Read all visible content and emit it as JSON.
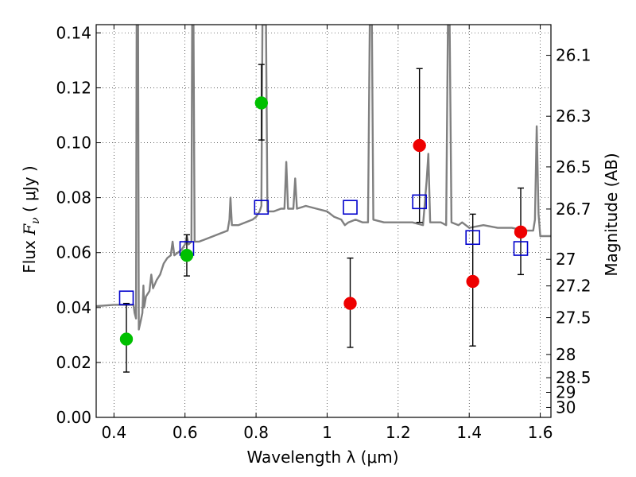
{
  "chart_data": {
    "type": "scatter",
    "xlabel": "Wavelength  λ (μm)",
    "ylabel": "Flux  F_ν  ( μJy )",
    "ylabel_parts": {
      "prefix": "Flux ",
      "symbol": "F",
      "subscript": "ν",
      "suffix": " ( μJy )"
    },
    "y2label": "Magnitude (AB)",
    "xlim": [
      0.35,
      1.63
    ],
    "ylim": [
      0.0,
      0.143
    ],
    "grid": true,
    "x_ticks": [
      {
        "value": 0.4,
        "label": "0.4"
      },
      {
        "value": 0.6,
        "label": "0.6"
      },
      {
        "value": 0.8,
        "label": "0.8"
      },
      {
        "value": 1.0,
        "label": "1"
      },
      {
        "value": 1.2,
        "label": "1.2"
      },
      {
        "value": 1.4,
        "label": "1.4"
      },
      {
        "value": 1.6,
        "label": "1.6"
      }
    ],
    "y_ticks": [
      {
        "value": 0.0,
        "label": "0.00"
      },
      {
        "value": 0.02,
        "label": "0.02"
      },
      {
        "value": 0.04,
        "label": "0.04"
      },
      {
        "value": 0.06,
        "label": "0.06"
      },
      {
        "value": 0.08,
        "label": "0.08"
      },
      {
        "value": 0.1,
        "label": "0.10"
      },
      {
        "value": 0.12,
        "label": "0.12"
      },
      {
        "value": 0.14,
        "label": "0.14"
      }
    ],
    "y2_ticks": [
      {
        "value": 26.1,
        "label": "26.1"
      },
      {
        "value": 26.3,
        "label": "26.3"
      },
      {
        "value": 26.5,
        "label": "26.5"
      },
      {
        "value": 26.7,
        "label": "26.7"
      },
      {
        "value": 27.0,
        "label": "27"
      },
      {
        "value": 27.2,
        "label": "27.2"
      },
      {
        "value": 27.5,
        "label": "27.5"
      },
      {
        "value": 28.0,
        "label": "28"
      },
      {
        "value": 28.5,
        "label": "28.5"
      },
      {
        "value": 29.0,
        "label": "29"
      },
      {
        "value": 30.0,
        "label": "30"
      }
    ],
    "series": [
      {
        "kind": "spectrum",
        "color": "#808080",
        "points": [
          [
            0.35,
            0.0405
          ],
          [
            0.4,
            0.041
          ],
          [
            0.44,
            0.041
          ],
          [
            0.455,
            0.041
          ],
          [
            0.458,
            0.038
          ],
          [
            0.462,
            0.036
          ],
          [
            0.464,
            0.143
          ],
          [
            0.468,
            0.143
          ],
          [
            0.47,
            0.032
          ],
          [
            0.475,
            0.035
          ],
          [
            0.48,
            0.038
          ],
          [
            0.483,
            0.048
          ],
          [
            0.485,
            0.04
          ],
          [
            0.49,
            0.044
          ],
          [
            0.5,
            0.046
          ],
          [
            0.505,
            0.052
          ],
          [
            0.51,
            0.047
          ],
          [
            0.52,
            0.05
          ],
          [
            0.53,
            0.052
          ],
          [
            0.54,
            0.056
          ],
          [
            0.55,
            0.058
          ],
          [
            0.56,
            0.059
          ],
          [
            0.565,
            0.064
          ],
          [
            0.57,
            0.059
          ],
          [
            0.58,
            0.06
          ],
          [
            0.59,
            0.061
          ],
          [
            0.6,
            0.063
          ],
          [
            0.605,
            0.066
          ],
          [
            0.61,
            0.063
          ],
          [
            0.618,
            0.064
          ],
          [
            0.62,
            0.143
          ],
          [
            0.624,
            0.143
          ],
          [
            0.627,
            0.064
          ],
          [
            0.64,
            0.064
          ],
          [
            0.66,
            0.065
          ],
          [
            0.68,
            0.066
          ],
          [
            0.7,
            0.067
          ],
          [
            0.72,
            0.068
          ],
          [
            0.725,
            0.072
          ],
          [
            0.728,
            0.08
          ],
          [
            0.732,
            0.07
          ],
          [
            0.75,
            0.07
          ],
          [
            0.77,
            0.071
          ],
          [
            0.79,
            0.072
          ],
          [
            0.8,
            0.073
          ],
          [
            0.81,
            0.075
          ],
          [
            0.815,
            0.077
          ],
          [
            0.818,
            0.143
          ],
          [
            0.822,
            0.143
          ],
          [
            0.825,
            0.143
          ],
          [
            0.828,
            0.143
          ],
          [
            0.832,
            0.075
          ],
          [
            0.85,
            0.075
          ],
          [
            0.87,
            0.076
          ],
          [
            0.88,
            0.076
          ],
          [
            0.885,
            0.093
          ],
          [
            0.89,
            0.076
          ],
          [
            0.905,
            0.076
          ],
          [
            0.91,
            0.087
          ],
          [
            0.915,
            0.076
          ],
          [
            0.94,
            0.077
          ],
          [
            0.97,
            0.076
          ],
          [
            1.0,
            0.075
          ],
          [
            1.02,
            0.073
          ],
          [
            1.04,
            0.072
          ],
          [
            1.05,
            0.07
          ],
          [
            1.06,
            0.071
          ],
          [
            1.08,
            0.072
          ],
          [
            1.1,
            0.071
          ],
          [
            1.115,
            0.071
          ],
          [
            1.12,
            0.143
          ],
          [
            1.126,
            0.143
          ],
          [
            1.13,
            0.072
          ],
          [
            1.16,
            0.071
          ],
          [
            1.2,
            0.071
          ],
          [
            1.24,
            0.071
          ],
          [
            1.27,
            0.07
          ],
          [
            1.28,
            0.086
          ],
          [
            1.285,
            0.096
          ],
          [
            1.29,
            0.071
          ],
          [
            1.32,
            0.071
          ],
          [
            1.335,
            0.07
          ],
          [
            1.34,
            0.143
          ],
          [
            1.345,
            0.143
          ],
          [
            1.35,
            0.071
          ],
          [
            1.37,
            0.07
          ],
          [
            1.38,
            0.071
          ],
          [
            1.4,
            0.069
          ],
          [
            1.44,
            0.07
          ],
          [
            1.48,
            0.069
          ],
          [
            1.52,
            0.069
          ],
          [
            1.56,
            0.068
          ],
          [
            1.58,
            0.068
          ],
          [
            1.585,
            0.072
          ],
          [
            1.59,
            0.106
          ],
          [
            1.595,
            0.074
          ],
          [
            1.6,
            0.066
          ],
          [
            1.63,
            0.066
          ]
        ]
      },
      {
        "kind": "model-square",
        "color": "#0000cc",
        "points": [
          [
            0.435,
            0.0435
          ],
          [
            0.605,
            0.0615
          ],
          [
            0.815,
            0.0765
          ],
          [
            1.065,
            0.0765
          ],
          [
            1.26,
            0.0785
          ],
          [
            1.41,
            0.0655
          ],
          [
            1.545,
            0.0615
          ]
        ]
      },
      {
        "kind": "detection",
        "color": "#00c000",
        "points": [
          {
            "x": 0.435,
            "y": 0.0285,
            "err": [
              0.0165,
              0.0415
            ]
          },
          {
            "x": 0.605,
            "y": 0.059,
            "err": [
              0.0515,
              0.0665
            ]
          },
          {
            "x": 0.815,
            "y": 0.1145,
            "err": [
              0.101,
              0.1285
            ]
          }
        ]
      },
      {
        "kind": "detection",
        "color": "#ee0000",
        "points": [
          {
            "x": 1.065,
            "y": 0.0415,
            "err": [
              0.0255,
              0.058
            ]
          },
          {
            "x": 1.26,
            "y": 0.099,
            "err": [
              0.071,
              0.127
            ]
          },
          {
            "x": 1.41,
            "y": 0.0495,
            "err": [
              0.026,
              0.074
            ]
          },
          {
            "x": 1.545,
            "y": 0.0675,
            "err": [
              0.052,
              0.0835
            ]
          }
        ]
      }
    ]
  }
}
